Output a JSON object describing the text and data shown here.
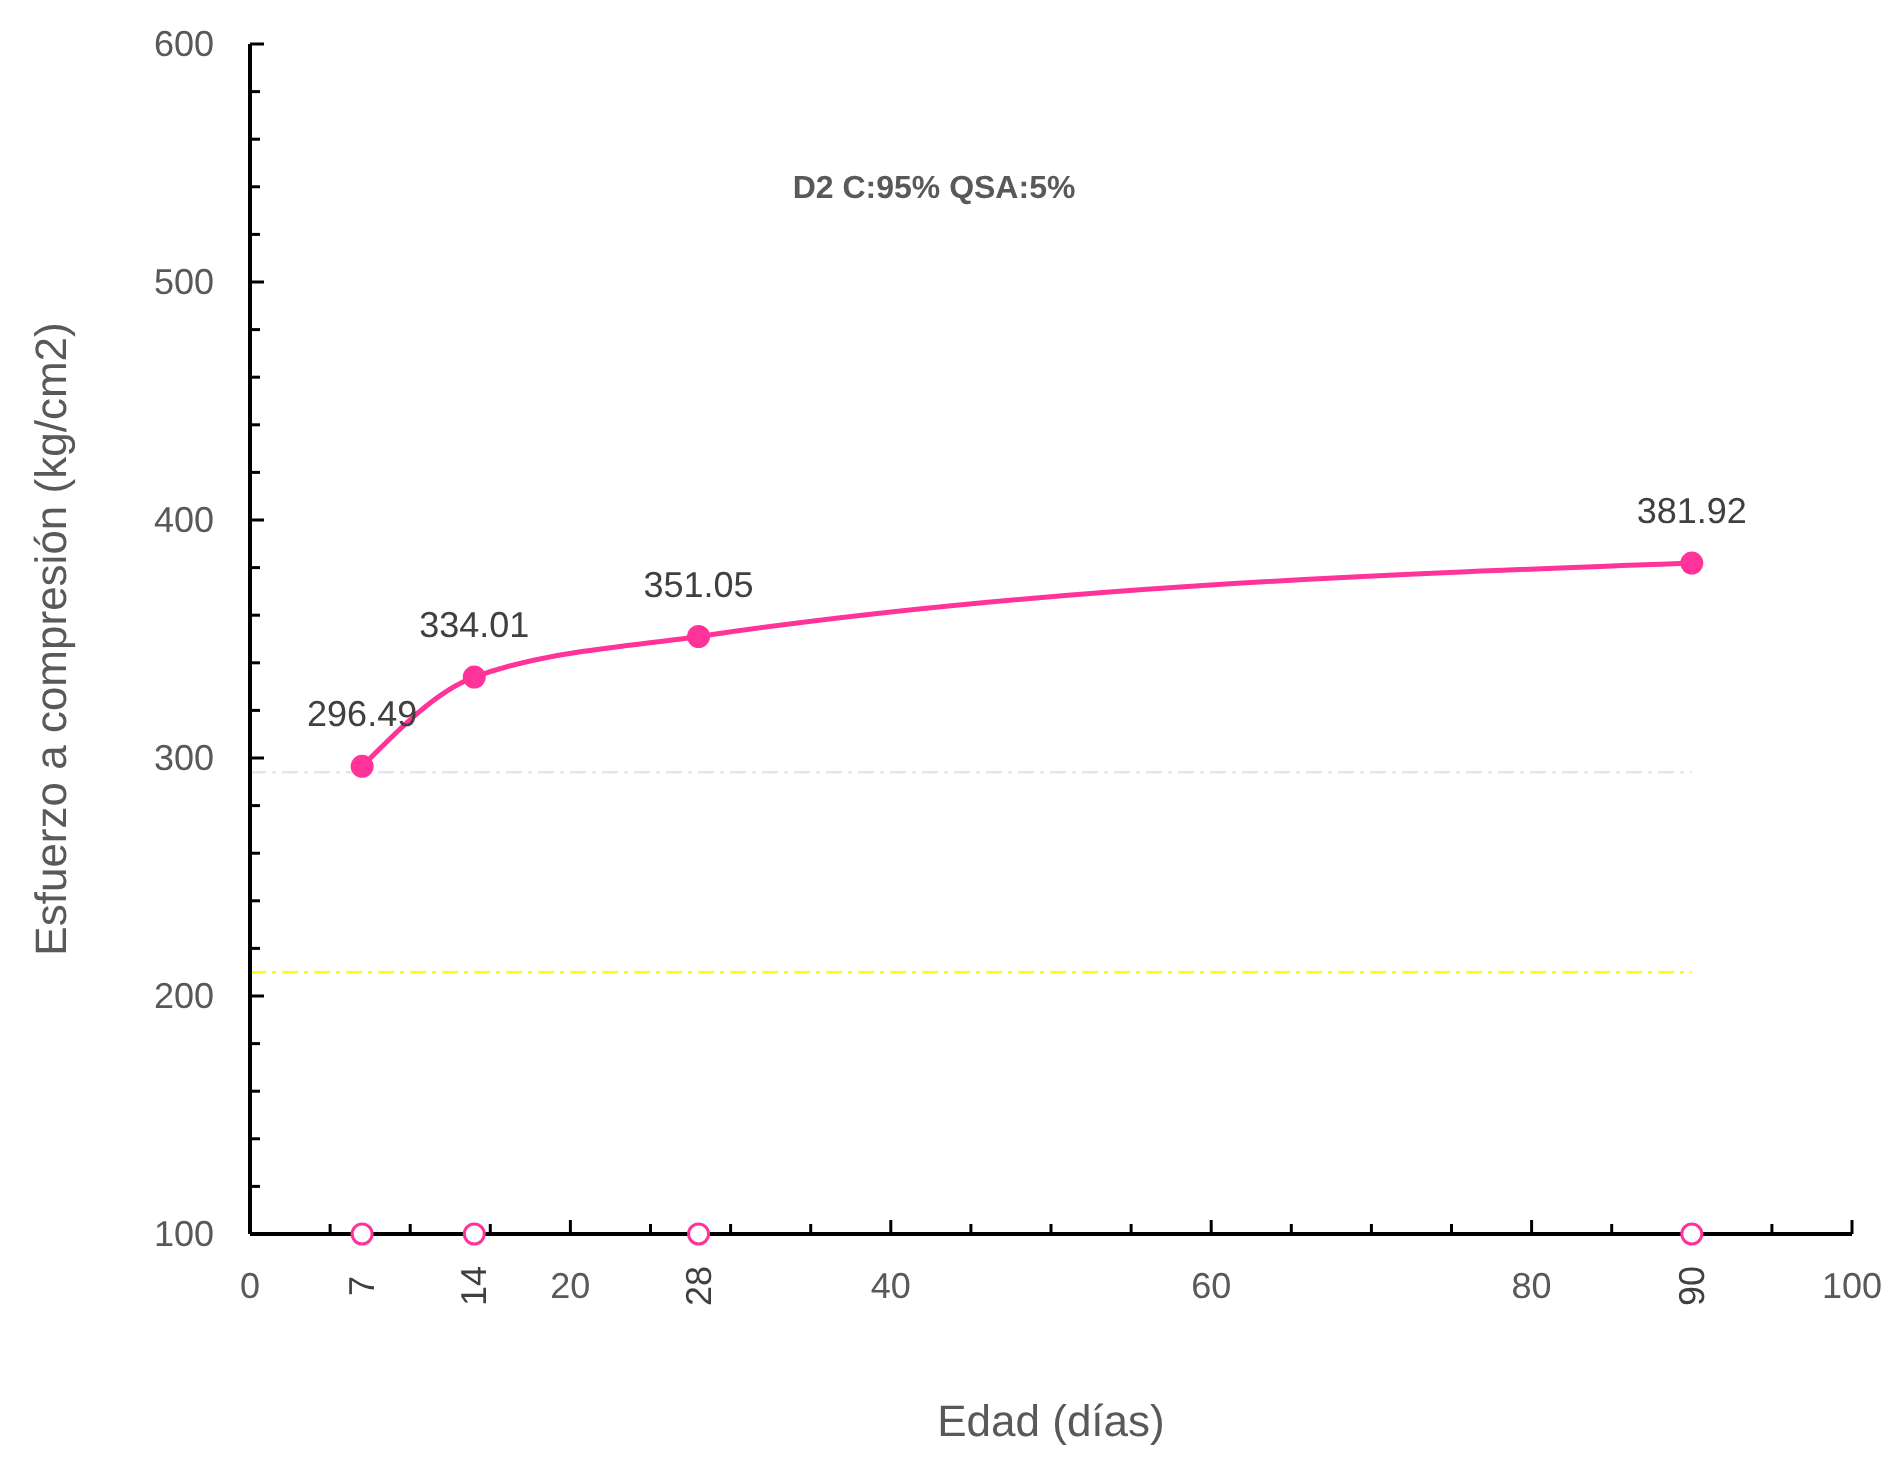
{
  "chart_data": {
    "type": "line",
    "title": "D2 C:95% QSA:5%",
    "xlabel": "Edad (días)",
    "ylabel": "Esfuerzo a compresión (kg/cm2)",
    "xlim": [
      0,
      100
    ],
    "ylim": [
      100,
      600
    ],
    "annotations": [
      {
        "text": "7",
        "x": 7,
        "y": 100
      },
      {
        "text": "14",
        "x": 14,
        "y": 100
      },
      {
        "text": "28",
        "x": 28,
        "y": 100
      },
      {
        "text": "90",
        "x": 90,
        "y": 100
      }
    ],
    "xticks": [
      0,
      {
        "value": 5,
        "label": null
      },
      {
        "value": 10,
        "label": null
      },
      {
        "value": 15,
        "label": null
      },
      20,
      {
        "value": 25,
        "label": null
      },
      {
        "value": 30,
        "label": null
      },
      {
        "value": 35,
        "label": null
      },
      40,
      {
        "value": 45,
        "label": null
      },
      {
        "value": 50,
        "label": null
      },
      {
        "value": 55,
        "label": null
      },
      60,
      {
        "value": 65,
        "label": null
      },
      {
        "value": 70,
        "label": null
      },
      {
        "value": 75,
        "label": null
      },
      80,
      {
        "value": 85,
        "label": null
      },
      {
        "value": 90,
        "label": null
      },
      {
        "value": 95,
        "label": null
      },
      100
    ],
    "yticks": [
      100,
      {
        "value": 120,
        "label": null
      },
      {
        "value": 140,
        "label": null
      },
      {
        "value": 160,
        "label": null
      },
      {
        "value": 180,
        "label": null
      },
      200,
      {
        "value": 220,
        "label": null
      },
      {
        "value": 240,
        "label": null
      },
      {
        "value": 260,
        "label": null
      },
      {
        "value": 280,
        "label": null
      },
      300,
      {
        "value": 320,
        "label": null
      },
      {
        "value": 340,
        "label": null
      },
      {
        "value": 360,
        "label": null
      },
      {
        "value": 380,
        "label": null
      },
      400,
      {
        "value": 420,
        "label": null
      },
      {
        "value": 440,
        "label": null
      },
      {
        "value": 460,
        "label": null
      },
      {
        "value": 480,
        "label": null
      },
      500,
      {
        "value": 520,
        "label": null
      },
      {
        "value": 540,
        "label": null
      },
      {
        "value": 560,
        "label": null
      },
      {
        "value": 580,
        "label": null
      },
      600
    ],
    "grid": false,
    "marker": "circle",
    "line_style": "solid",
    "series": [
      {
        "color": "#ff3399",
        "x": [
          7,
          14,
          28,
          90
        ],
        "values": [
          296.49,
          334.01,
          351.05,
          381.92
        ],
        "value_labels": [
          "296.49",
          "334.01",
          "351.05",
          "381.92"
        ]
      },
      {
        "type": "scatter",
        "color": "#ff3399",
        "x": [
          7,
          14,
          28,
          90
        ],
        "values": [
          100,
          100,
          100,
          100
        ]
      }
    ],
    "ref_lines": [
      {
        "axis": "y",
        "value": 294,
        "color": "#dde8f5",
        "line_style": "dashed"
      },
      {
        "axis": "y",
        "value": 210,
        "color": "#ffff00",
        "line_style": "dashed"
      }
    ]
  }
}
